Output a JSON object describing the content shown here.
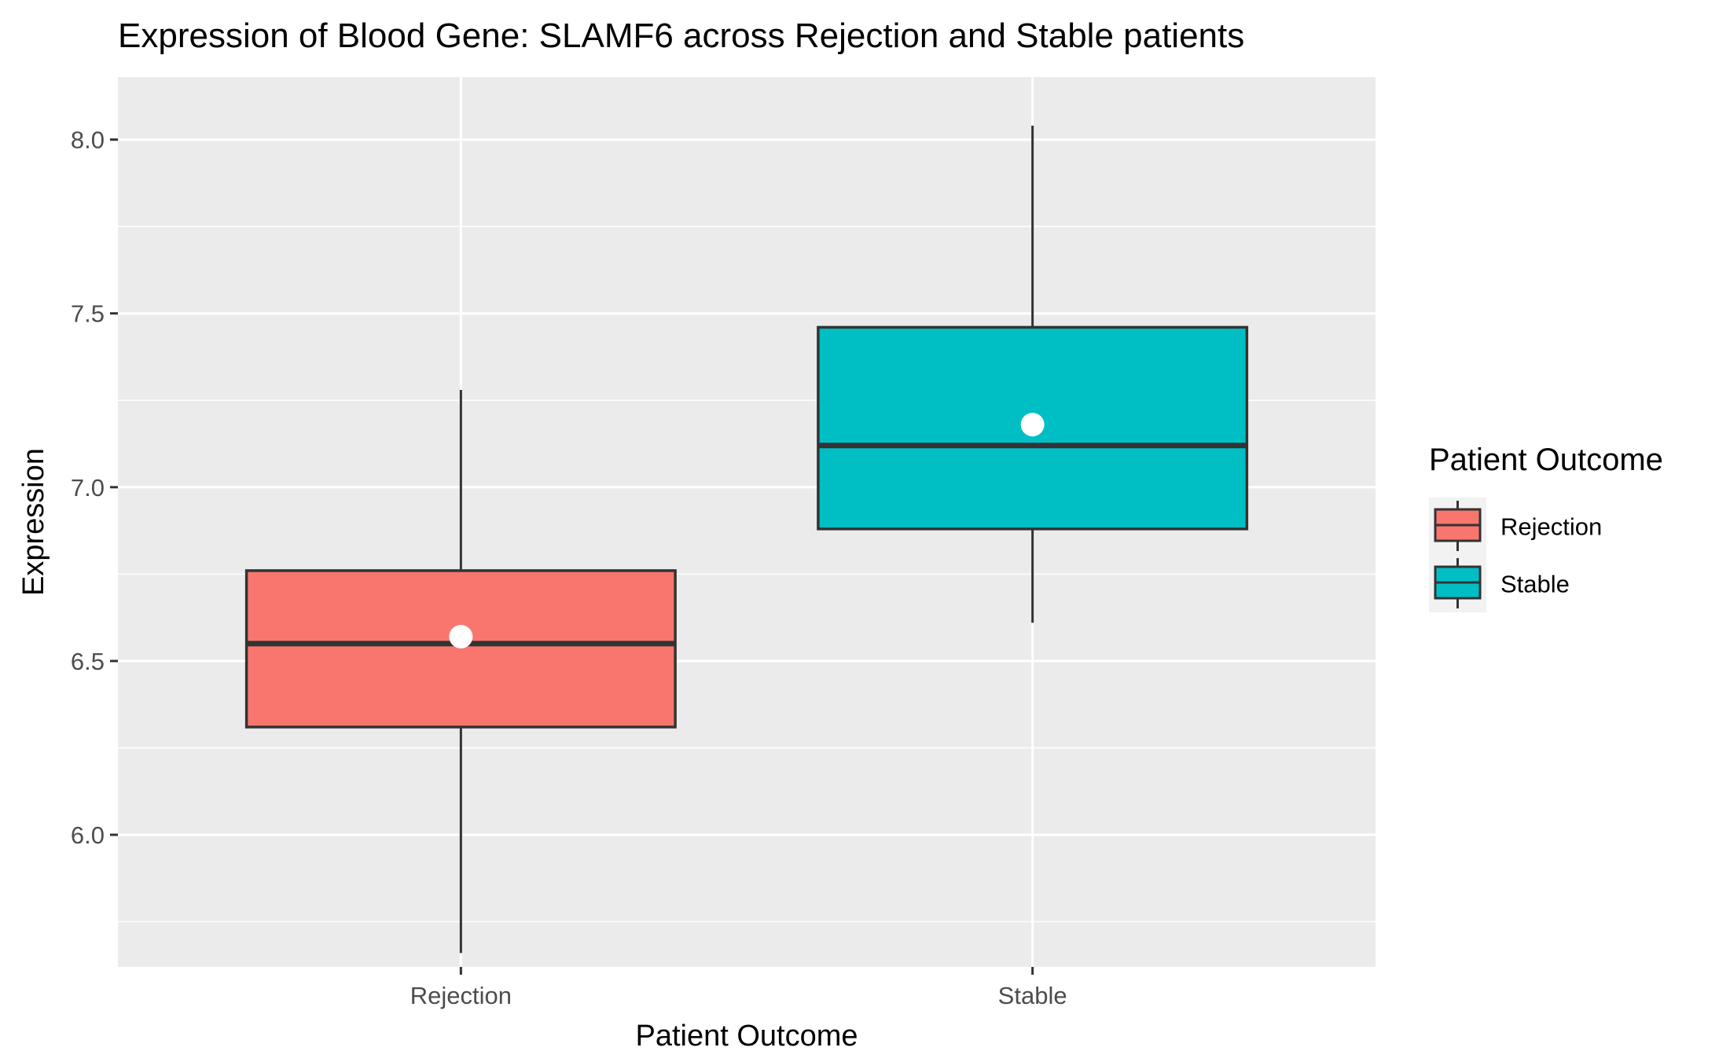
{
  "chart_data": {
    "type": "box",
    "title": "Expression of Blood Gene: SLAMF6 across Rejection and Stable patients",
    "xlabel": "Patient Outcome",
    "ylabel": "Expression",
    "categories": [
      "Rejection",
      "Stable"
    ],
    "ylim": [
      5.62,
      8.18
    ],
    "y_ticks": [
      6.0,
      6.5,
      7.0,
      7.5,
      8.0
    ],
    "y_tick_labels": [
      "6.0",
      "6.5",
      "7.0",
      "7.5",
      "8.0"
    ],
    "grid": true,
    "legend_position": "right",
    "legend_title": "Patient Outcome",
    "series": [
      {
        "name": "Rejection",
        "color": "#F8766D",
        "whisker_low": 5.66,
        "q1": 6.31,
        "median": 6.55,
        "q3": 6.76,
        "whisker_high": 7.28,
        "mean": 6.57
      },
      {
        "name": "Stable",
        "color": "#00BFC4",
        "whisker_low": 6.61,
        "q1": 6.88,
        "median": 7.12,
        "q3": 7.46,
        "whisker_high": 8.04,
        "mean": 7.18
      }
    ]
  }
}
